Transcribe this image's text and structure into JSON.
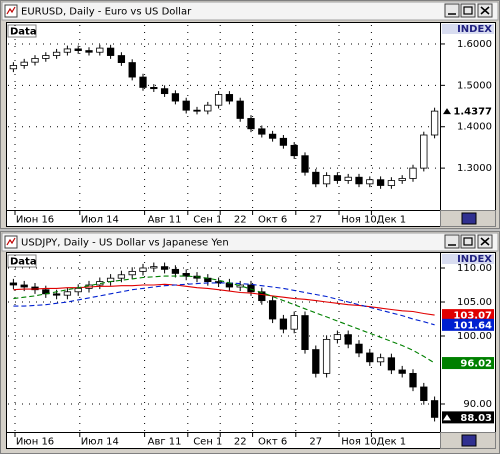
{
  "chart_data": [
    {
      "type": "candlestick",
      "title": "EURUSD, Daily - Euro vs US Dollar",
      "legend_label": "Data",
      "axis_header": "INDEX",
      "categories": [
        null,
        null,
        "Июн 16",
        null,
        null,
        null,
        null,
        null,
        "Июл 14",
        null,
        null,
        null,
        null,
        null,
        "Авг 11",
        null,
        null,
        null,
        "Сен 1",
        null,
        null,
        "22",
        null,
        null,
        "Окт 6",
        null,
        null,
        null,
        "27",
        null,
        null,
        null,
        "Ноя 10",
        null,
        null,
        "Дек 1",
        null,
        null,
        null,
        null
      ],
      "open": [
        1.54,
        1.548,
        1.556,
        1.565,
        1.572,
        1.58,
        1.588,
        1.584,
        1.58,
        1.59,
        1.572,
        1.555,
        1.52,
        1.495,
        1.492,
        1.48,
        1.462,
        1.44,
        1.438,
        1.452,
        1.478,
        1.462,
        1.42,
        1.395,
        1.382,
        1.372,
        1.355,
        1.33,
        1.29,
        1.262,
        1.282,
        1.27,
        1.278,
        1.262,
        1.272,
        1.258,
        1.27,
        1.275,
        1.3,
        1.38
      ],
      "high": [
        1.556,
        1.564,
        1.573,
        1.58,
        1.588,
        1.596,
        1.596,
        1.592,
        1.598,
        1.598,
        1.58,
        1.563,
        1.528,
        1.503,
        1.5,
        1.488,
        1.47,
        1.448,
        1.46,
        1.486,
        1.486,
        1.47,
        1.428,
        1.403,
        1.39,
        1.38,
        1.363,
        1.338,
        1.298,
        1.29,
        1.29,
        1.286,
        1.286,
        1.28,
        1.28,
        1.278,
        1.283,
        1.308,
        1.388,
        1.446
      ],
      "low": [
        1.532,
        1.54,
        1.548,
        1.557,
        1.564,
        1.572,
        1.576,
        1.572,
        1.572,
        1.564,
        1.547,
        1.512,
        1.487,
        1.484,
        1.472,
        1.454,
        1.432,
        1.43,
        1.43,
        1.444,
        1.454,
        1.412,
        1.387,
        1.374,
        1.364,
        1.347,
        1.322,
        1.282,
        1.254,
        1.254,
        1.262,
        1.262,
        1.254,
        1.254,
        1.25,
        1.25,
        1.262,
        1.267,
        1.292,
        1.372
      ],
      "close": [
        1.548,
        1.556,
        1.565,
        1.572,
        1.58,
        1.588,
        1.584,
        1.58,
        1.59,
        1.572,
        1.555,
        1.52,
        1.495,
        1.492,
        1.48,
        1.462,
        1.44,
        1.438,
        1.452,
        1.478,
        1.462,
        1.42,
        1.395,
        1.382,
        1.372,
        1.355,
        1.33,
        1.29,
        1.262,
        1.282,
        1.27,
        1.278,
        1.262,
        1.272,
        1.258,
        1.27,
        1.275,
        1.3,
        1.38,
        1.4377
      ],
      "lines": [],
      "last_label_color": "#ffffff",
      "ylim": [
        1.1988,
        1.6458
      ],
      "yticks": [
        {
          "value": 1.6,
          "label": "1.6000"
        },
        {
          "value": 1.5,
          "label": "1.5000"
        },
        {
          "value": 1.4,
          "label": "1.4000"
        },
        {
          "value": 1.3,
          "label": "1.3000"
        }
      ],
      "grid": true
    },
    {
      "type": "candlestick",
      "title": "USDJPY, Daily - US Dollar vs Japanese Yen",
      "legend_label": "Data",
      "axis_header": "INDEX",
      "categories": [
        null,
        null,
        "Июн 16",
        null,
        null,
        null,
        null,
        null,
        "Июл 14",
        null,
        null,
        null,
        null,
        null,
        "Авг 11",
        null,
        null,
        null,
        "Сен 1",
        null,
        null,
        "22",
        null,
        null,
        "Окт 6",
        null,
        null,
        null,
        "27",
        null,
        null,
        null,
        "Ноя 10",
        null,
        null,
        "Дек 1",
        null,
        null,
        null,
        null
      ],
      "open": [
        107.8,
        107.5,
        107.2,
        106.8,
        106.2,
        106.0,
        106.5,
        107.0,
        107.5,
        108.0,
        108.5,
        109.0,
        109.5,
        110.0,
        110.2,
        109.8,
        109.2,
        108.8,
        108.5,
        108.0,
        107.8,
        107.2,
        107.5,
        106.5,
        105.2,
        102.5,
        101.0,
        103.0,
        98.0,
        94.5,
        99.5,
        100.2,
        98.8,
        97.5,
        96.2,
        96.8,
        95.0,
        94.5,
        92.5,
        90.5
      ],
      "high": [
        108.4,
        108.1,
        107.8,
        107.4,
        106.8,
        107.1,
        107.6,
        108.1,
        108.6,
        109.1,
        109.6,
        110.1,
        110.6,
        110.8,
        110.8,
        110.4,
        109.8,
        109.4,
        109.1,
        108.6,
        108.4,
        108.1,
        108.1,
        107.1,
        105.8,
        103.1,
        103.6,
        103.6,
        98.6,
        100.1,
        100.8,
        100.8,
        99.4,
        98.1,
        97.4,
        97.4,
        95.6,
        95.1,
        93.1,
        91.1
      ],
      "low": [
        106.9,
        106.6,
        106.2,
        105.6,
        105.4,
        105.4,
        105.9,
        106.4,
        106.9,
        107.4,
        107.9,
        108.4,
        108.9,
        109.4,
        109.2,
        108.6,
        108.2,
        107.9,
        107.4,
        107.2,
        106.6,
        106.6,
        105.9,
        104.6,
        101.9,
        100.4,
        100.4,
        97.4,
        93.9,
        93.9,
        98.9,
        98.2,
        96.9,
        95.6,
        95.6,
        94.4,
        93.9,
        91.9,
        89.9,
        87.43
      ],
      "close": [
        107.5,
        107.2,
        106.8,
        106.2,
        106.0,
        106.5,
        107.0,
        107.5,
        108.0,
        108.5,
        109.0,
        109.5,
        110.0,
        110.2,
        109.8,
        109.2,
        108.8,
        108.5,
        108.0,
        107.8,
        107.2,
        107.5,
        106.5,
        105.2,
        102.5,
        101.0,
        103.0,
        98.0,
        94.5,
        99.5,
        100.2,
        98.8,
        97.5,
        96.2,
        96.8,
        95.0,
        94.5,
        92.5,
        90.5,
        88.03
      ],
      "lines": [
        {
          "color": "#e00000",
          "dashed": false,
          "values": [
            106.8,
            106.9,
            106.9,
            107.0,
            107.0,
            107.1,
            107.1,
            107.2,
            107.3,
            107.3,
            107.4,
            107.4,
            107.5,
            107.5,
            107.6,
            107.5,
            107.3,
            107.1,
            107.0,
            106.8,
            106.6,
            106.4,
            106.3,
            106.1,
            105.9,
            105.7,
            105.5,
            105.4,
            105.2,
            105.0,
            104.8,
            104.6,
            104.5,
            104.3,
            104.1,
            103.9,
            103.7,
            103.6,
            103.3,
            103.07
          ]
        },
        {
          "color": "#0020d0",
          "dashed": true,
          "values": [
            104.4,
            104.4,
            104.5,
            104.6,
            104.8,
            105.0,
            105.3,
            105.6,
            105.9,
            106.2,
            106.5,
            106.8,
            107.0,
            107.2,
            107.4,
            107.5,
            107.6,
            107.7,
            107.8,
            107.8,
            107.8,
            107.7,
            107.6,
            107.4,
            107.2,
            107.0,
            106.7,
            106.4,
            106.1,
            105.8,
            105.4,
            105.0,
            104.6,
            104.2,
            103.8,
            103.4,
            103.0,
            102.5,
            102.1,
            101.64
          ]
        },
        {
          "color": "#008000",
          "dashed": true,
          "values": [
            105.5,
            105.7,
            105.9,
            106.2,
            106.5,
            106.8,
            107.1,
            107.4,
            107.7,
            108.0,
            108.2,
            108.4,
            108.6,
            108.7,
            108.8,
            108.8,
            108.8,
            108.7,
            108.5,
            108.2,
            107.8,
            107.4,
            106.9,
            106.4,
            105.8,
            105.2,
            104.6,
            104.0,
            103.4,
            102.8,
            102.2,
            101.6,
            101.0,
            100.4,
            99.8,
            99.2,
            98.6,
            97.9,
            97.0,
            96.02
          ]
        }
      ],
      "last_label_color": "#000000",
      "ylim": [
        85.88,
        111.91
      ],
      "yticks": [
        {
          "value": 110,
          "label": "110.00"
        },
        {
          "value": 105,
          "label": "105.00"
        },
        {
          "value": 100,
          "label": "100.00"
        },
        {
          "value": 90,
          "label": "90.00"
        }
      ],
      "grid": true
    }
  ]
}
